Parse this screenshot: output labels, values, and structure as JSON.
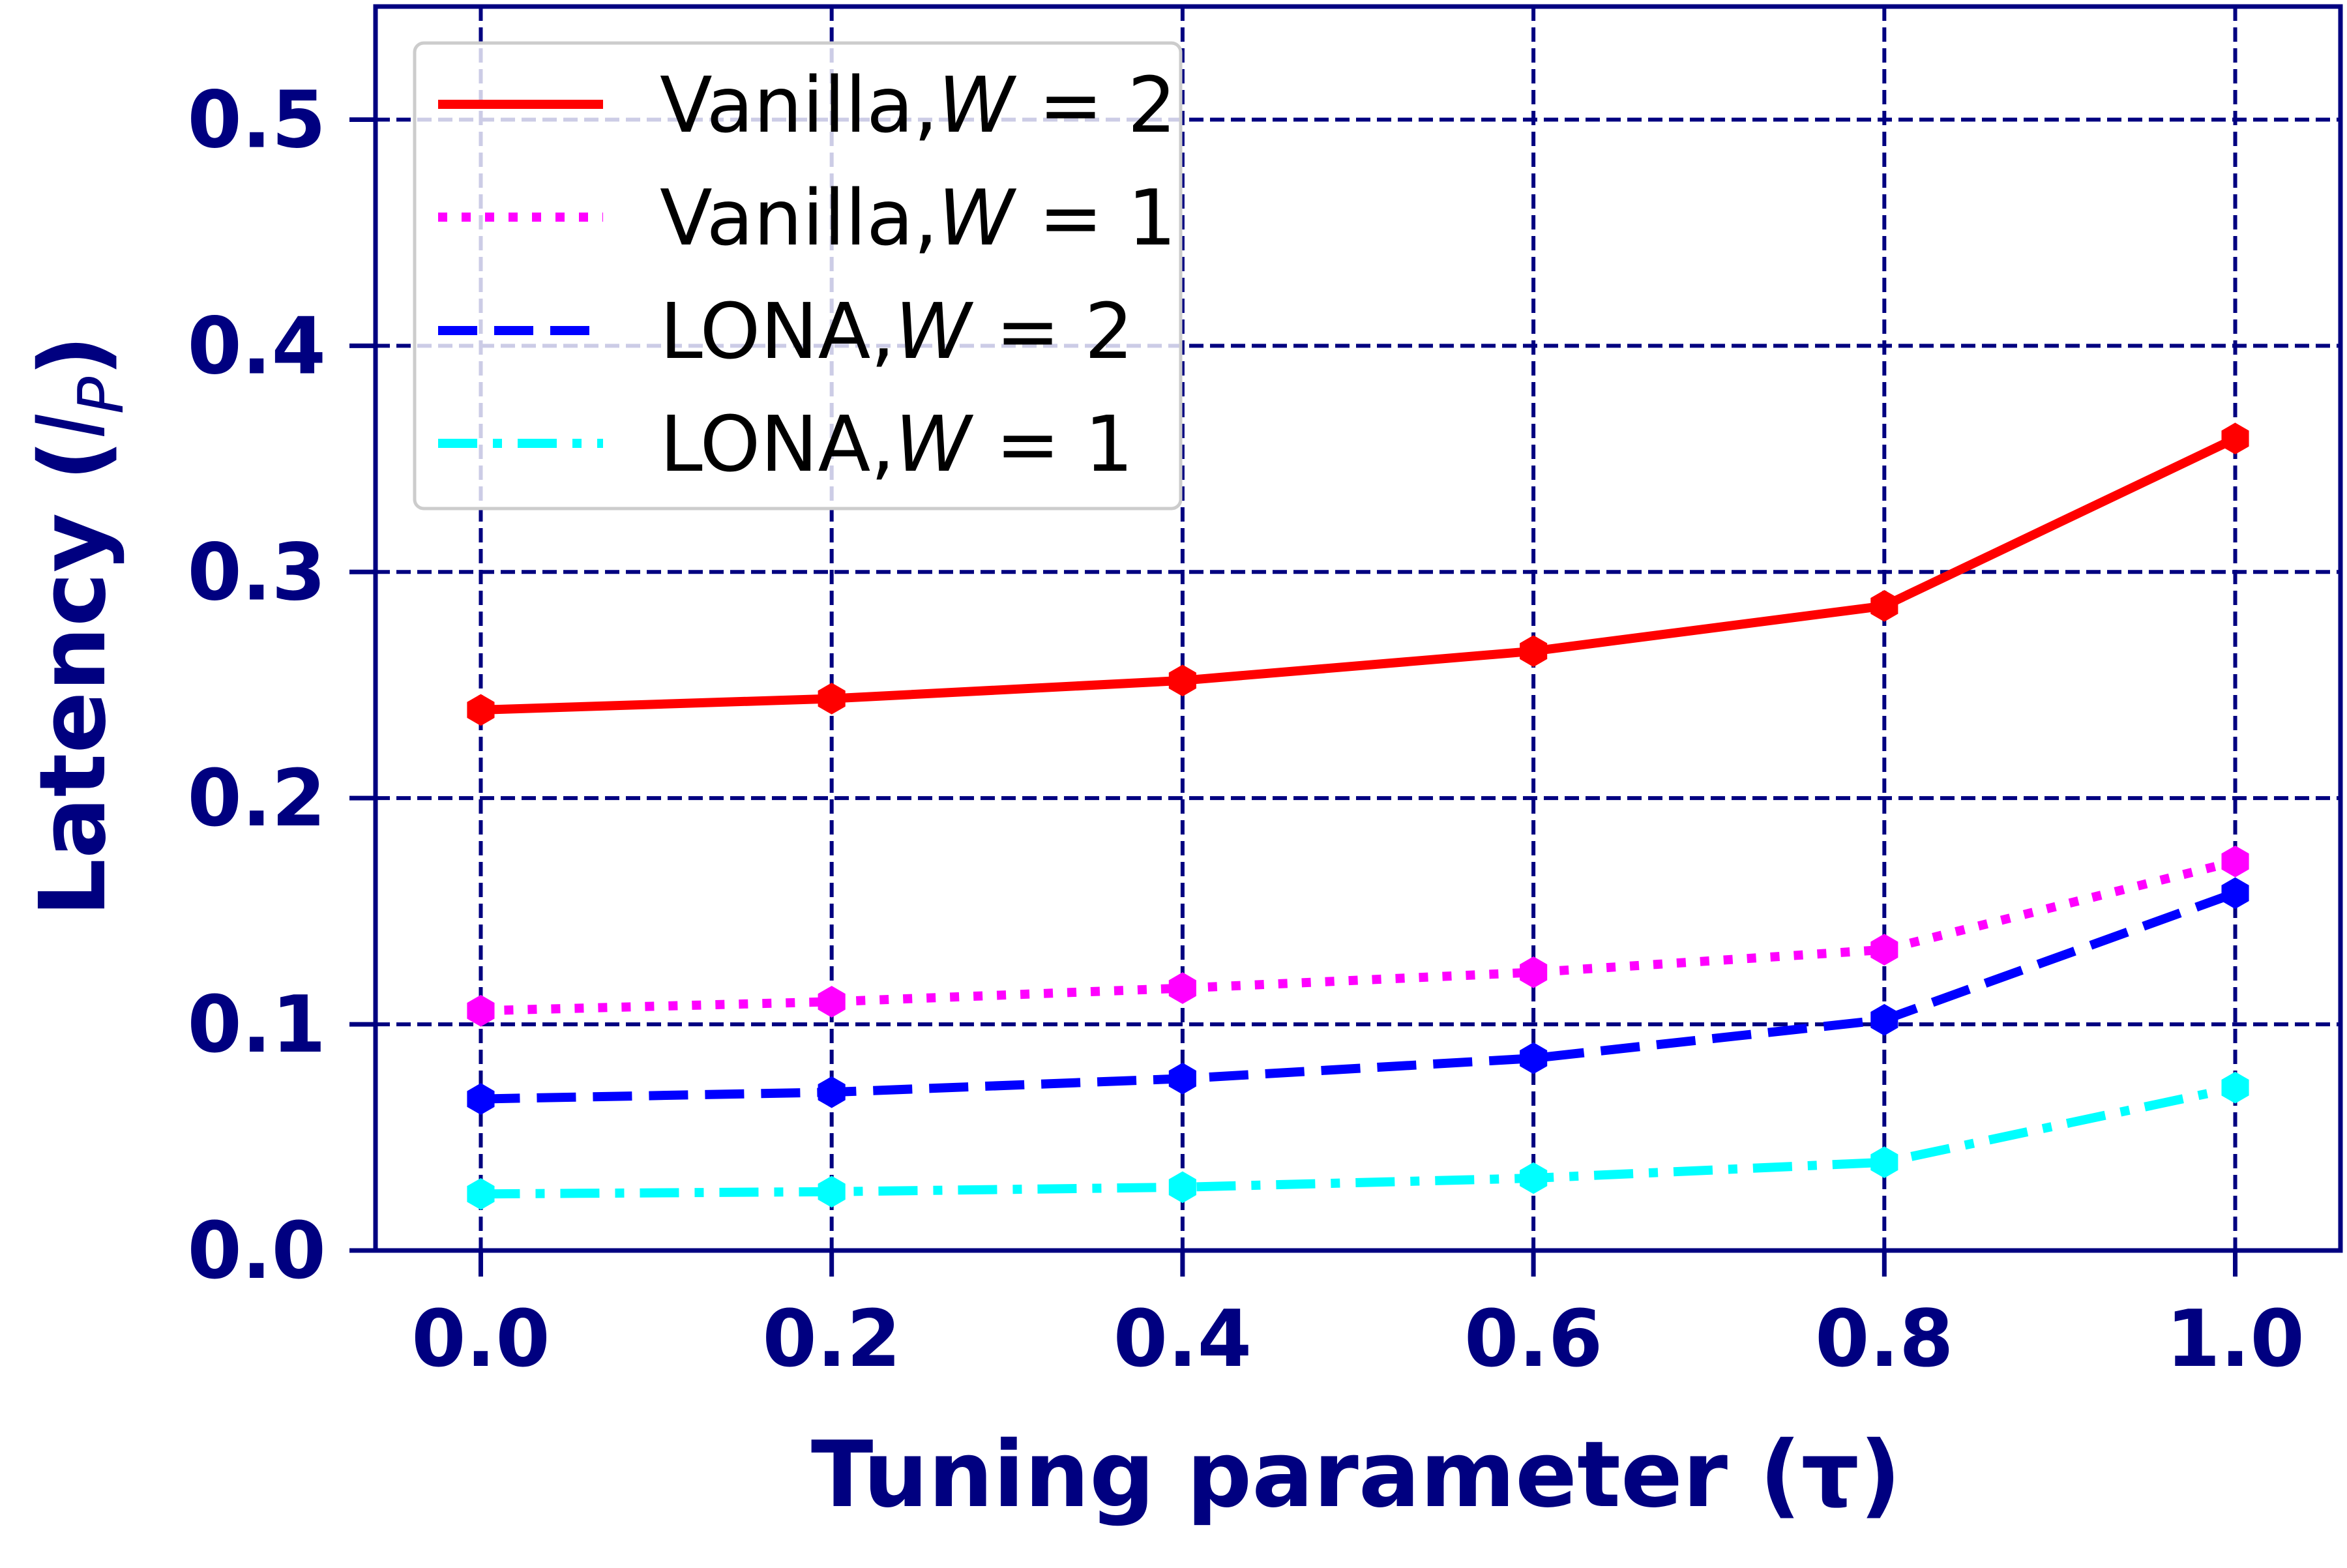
{
  "chart_data": {
    "type": "line",
    "title": "",
    "xlabel": "Tuning parameter (τ)",
    "ylabel": "Latency (l_P)",
    "xlim": [
      -0.06,
      1.06
    ],
    "ylim": [
      0.0,
      0.55
    ],
    "xticks": [
      0.0,
      0.2,
      0.4,
      0.6,
      0.8,
      1.0
    ],
    "xtick_labels": [
      "0.0",
      "0.2",
      "0.4",
      "0.6",
      "0.8",
      "1.0"
    ],
    "yticks": [
      0.0,
      0.1,
      0.2,
      0.3,
      0.4,
      0.5
    ],
    "ytick_labels": [
      "0.0",
      "0.1",
      "0.2",
      "0.3",
      "0.4",
      "0.5"
    ],
    "grid": true,
    "legend_position": "top-left",
    "x": [
      0.0,
      0.2,
      0.4,
      0.6,
      0.8,
      1.0
    ],
    "series": [
      {
        "name": "Vanilla,W = 2",
        "legend_prefix": "Vanilla,",
        "legend_var": "W",
        "legend_rest": " = 2",
        "values": [
          0.239,
          0.244,
          0.252,
          0.265,
          0.285,
          0.359
        ],
        "color": "#ff0000",
        "style": "solid"
      },
      {
        "name": "Vanilla,W = 1",
        "legend_prefix": "Vanilla,",
        "legend_var": "W",
        "legend_rest": " = 1",
        "values": [
          0.106,
          0.11,
          0.116,
          0.123,
          0.133,
          0.172
        ],
        "color": "#ff00ff",
        "style": "dotted"
      },
      {
        "name": "LONA,W = 2",
        "legend_prefix": "LONA,",
        "legend_var": "W",
        "legend_rest": " = 2",
        "values": [
          0.067,
          0.07,
          0.076,
          0.085,
          0.102,
          0.158
        ],
        "color": "#0000ff",
        "style": "dashed"
      },
      {
        "name": "LONA,W = 1",
        "legend_prefix": "LONA,",
        "legend_var": "W",
        "legend_rest": " = 1",
        "values": [
          0.025,
          0.026,
          0.028,
          0.032,
          0.039,
          0.072
        ],
        "color": "#00ffff",
        "style": "dashdot"
      }
    ],
    "colors": {
      "axis": "#000080",
      "grid": "#000080"
    }
  }
}
